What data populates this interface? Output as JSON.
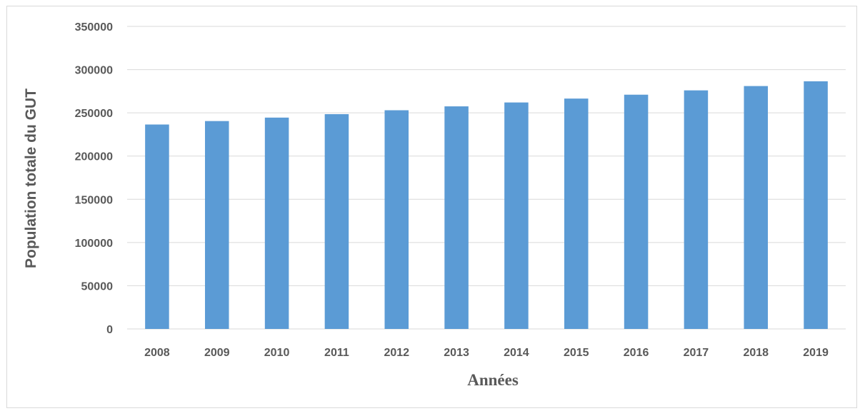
{
  "chart_data": {
    "type": "bar",
    "categories": [
      "2008",
      "2009",
      "2010",
      "2011",
      "2012",
      "2013",
      "2014",
      "2015",
      "2016",
      "2017",
      "2018",
      "2019"
    ],
    "values": [
      236500,
      240500,
      244500,
      248500,
      253000,
      257500,
      262000,
      266500,
      271000,
      276000,
      281000,
      286500
    ],
    "title": "",
    "xlabel": "Années",
    "ylabel": "Population totale du GUT",
    "ylim": [
      0,
      350000
    ],
    "yticks": [
      "0",
      "50000",
      "100000",
      "150000",
      "200000",
      "250000",
      "300000",
      "350000"
    ],
    "grid": "horizontal",
    "legend": "none",
    "bar_color": "#5b9bd5",
    "grid_color": "#d9d9d9",
    "text_color": "#595959"
  }
}
